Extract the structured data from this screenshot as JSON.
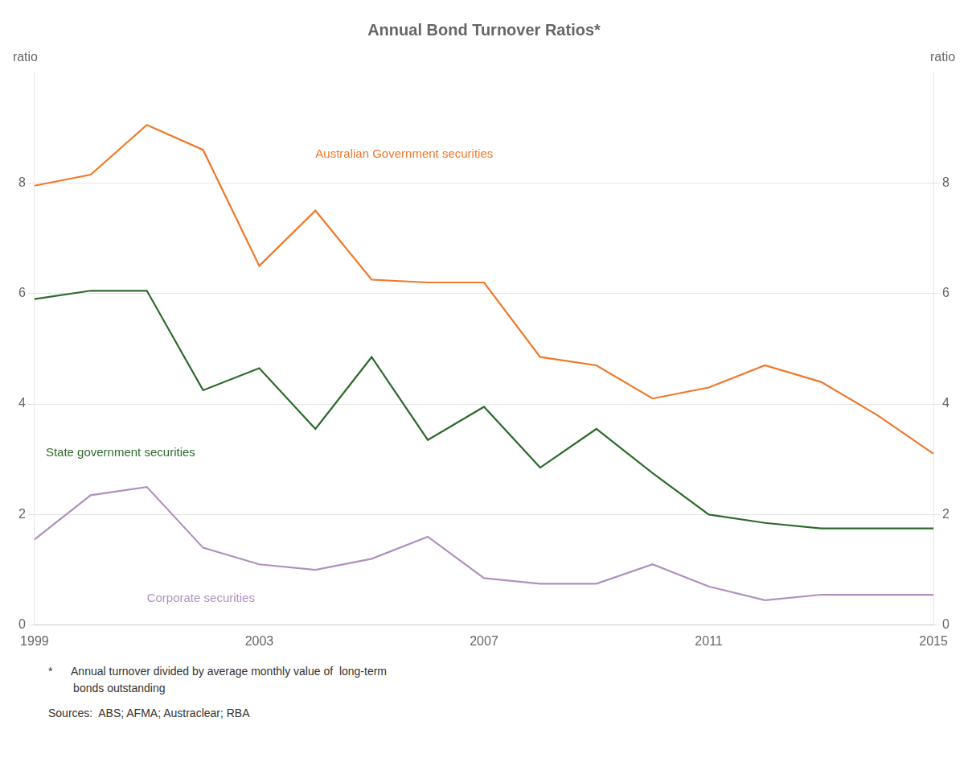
{
  "chart_data": {
    "type": "line",
    "title": "Annual Bond Turnover Ratios*",
    "y_label": "ratio",
    "y2_label": "ratio",
    "x": [
      1999,
      2000,
      2001,
      2002,
      2003,
      2004,
      2005,
      2006,
      2007,
      2008,
      2009,
      2010,
      2011,
      2012,
      2013,
      2014,
      2015
    ],
    "series": [
      {
        "name": "Australian Government securities",
        "color": "#f07828",
        "values": [
          7.95,
          8.15,
          9.05,
          8.6,
          6.5,
          7.5,
          6.25,
          6.2,
          6.2,
          4.85,
          4.7,
          4.1,
          4.3,
          4.7,
          4.4,
          3.8,
          3.1
        ]
      },
      {
        "name": "State government securities",
        "color": "#2d6a2d",
        "values": [
          5.9,
          6.05,
          6.05,
          4.25,
          4.65,
          3.55,
          4.85,
          3.35,
          3.95,
          2.85,
          3.55,
          2.75,
          2.0,
          1.85,
          1.75,
          1.75,
          1.75
        ]
      },
      {
        "name": "Corporate securities",
        "color": "#b090c0",
        "values": [
          1.55,
          2.35,
          2.5,
          1.4,
          1.1,
          1.0,
          1.2,
          1.6,
          0.85,
          0.75,
          0.75,
          1.1,
          0.7,
          0.45,
          0.55,
          0.55,
          0.55
        ]
      }
    ],
    "xlim": [
      1999,
      2015
    ],
    "xticks": [
      1999,
      2003,
      2007,
      2011,
      2015
    ],
    "ylim": [
      0,
      10
    ],
    "yticks": [
      0,
      2,
      4,
      6,
      8
    ],
    "y2lim": [
      0,
      10
    ],
    "y2ticks": [
      0,
      2,
      4,
      6,
      8
    ],
    "grid": true,
    "annotations": [
      {
        "text": "Australian Government securities",
        "x": 2004.0,
        "y": 8.45,
        "color": "#f07828"
      },
      {
        "text": "State government securities",
        "x": 1999.2,
        "y": 3.05,
        "color": "#2d6a2d"
      },
      {
        "text": "Corporate securities",
        "x": 2001.0,
        "y": 0.42,
        "color": "#b090c0"
      }
    ],
    "footnotes": [
      "*      Annual turnover divided by average monthly value of  long-term",
      "        bonds outstanding"
    ],
    "source": "Sources:  ABS; AFMA; Austraclear; RBA"
  }
}
